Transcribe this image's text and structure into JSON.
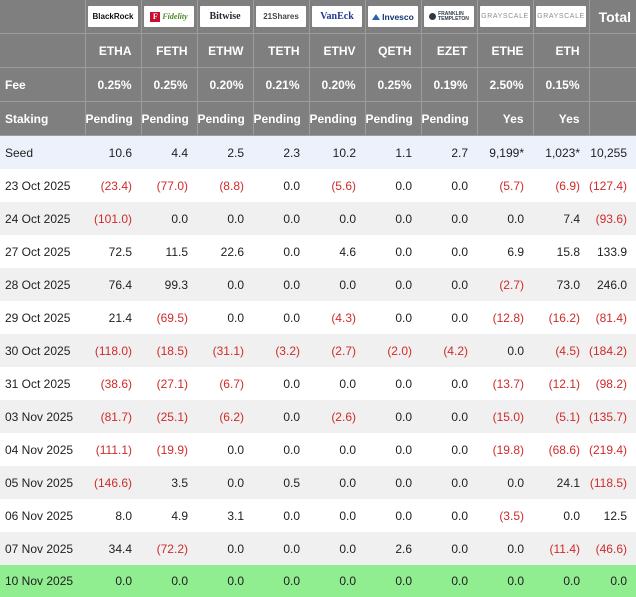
{
  "table": {
    "total_label": "Total",
    "row_labels": {
      "fee": "Fee",
      "staking": "Staking"
    },
    "providers": [
      {
        "id": "blackrock",
        "name": "BlackRock",
        "ticker": "ETHA",
        "fee": "0.25%",
        "staking": "Pending"
      },
      {
        "id": "fidelity",
        "name": "Fidelity",
        "ticker": "FETH",
        "fee": "0.25%",
        "staking": "Pending",
        "logo_letter": "F"
      },
      {
        "id": "bitwise",
        "name": "Bitwise",
        "ticker": "ETHW",
        "fee": "0.20%",
        "staking": "Pending"
      },
      {
        "id": "21shares",
        "name": "21Shares",
        "ticker": "TETH",
        "fee": "0.21%",
        "staking": "Pending"
      },
      {
        "id": "vaneck",
        "name": "VanEck",
        "ticker": "ETHV",
        "fee": "0.20%",
        "staking": "Pending"
      },
      {
        "id": "invesco",
        "name": "Invesco",
        "ticker": "QETH",
        "fee": "0.25%",
        "staking": "Pending"
      },
      {
        "id": "franklin",
        "name": "Franklin Templeton",
        "ticker": "EZET",
        "fee": "0.19%",
        "staking": "Pending",
        "logo_line1": "FRANKLIN",
        "logo_line2": "TEMPLETON"
      },
      {
        "id": "grayscale",
        "name": "Grayscale",
        "ticker": "ETHE",
        "fee": "2.50%",
        "staking": "Yes"
      },
      {
        "id": "grayscale",
        "name": "Grayscale",
        "ticker": "ETH",
        "fee": "0.15%",
        "staking": "Yes"
      }
    ],
    "rows": [
      {
        "label": "Seed",
        "values": [
          "10.6",
          "4.4",
          "2.5",
          "2.3",
          "10.2",
          "1.1",
          "2.7",
          "9,199*",
          "1,023*"
        ],
        "total": "10,255",
        "style": "seed"
      },
      {
        "label": "23 Oct 2025",
        "values": [
          "(23.4)",
          "(77.0)",
          "(8.8)",
          "0.0",
          "(5.6)",
          "0.0",
          "0.0",
          "(5.7)",
          "(6.9)"
        ],
        "total": "(127.4)",
        "style": "white"
      },
      {
        "label": "24 Oct 2025",
        "values": [
          "(101.0)",
          "0.0",
          "0.0",
          "0.0",
          "0.0",
          "0.0",
          "0.0",
          "0.0",
          "7.4"
        ],
        "total": "(93.6)",
        "style": "gray"
      },
      {
        "label": "27 Oct 2025",
        "values": [
          "72.5",
          "11.5",
          "22.6",
          "0.0",
          "4.6",
          "0.0",
          "0.0",
          "6.9",
          "15.8"
        ],
        "total": "133.9",
        "style": "white"
      },
      {
        "label": "28 Oct 2025",
        "values": [
          "76.4",
          "99.3",
          "0.0",
          "0.0",
          "0.0",
          "0.0",
          "0.0",
          "(2.7)",
          "73.0"
        ],
        "total": "246.0",
        "style": "gray"
      },
      {
        "label": "29 Oct 2025",
        "values": [
          "21.4",
          "(69.5)",
          "0.0",
          "0.0",
          "(4.3)",
          "0.0",
          "0.0",
          "(12.8)",
          "(16.2)"
        ],
        "total": "(81.4)",
        "style": "white"
      },
      {
        "label": "30 Oct 2025",
        "values": [
          "(118.0)",
          "(18.5)",
          "(31.1)",
          "(3.2)",
          "(2.7)",
          "(2.0)",
          "(4.2)",
          "0.0",
          "(4.5)"
        ],
        "total": "(184.2)",
        "style": "gray"
      },
      {
        "label": "31 Oct 2025",
        "values": [
          "(38.6)",
          "(27.1)",
          "(6.7)",
          "0.0",
          "0.0",
          "0.0",
          "0.0",
          "(13.7)",
          "(12.1)"
        ],
        "total": "(98.2)",
        "style": "white"
      },
      {
        "label": "03 Nov 2025",
        "values": [
          "(81.7)",
          "(25.1)",
          "(6.2)",
          "0.0",
          "(2.6)",
          "0.0",
          "0.0",
          "(15.0)",
          "(5.1)"
        ],
        "total": "(135.7)",
        "style": "gray"
      },
      {
        "label": "04 Nov 2025",
        "values": [
          "(111.1)",
          "(19.9)",
          "0.0",
          "0.0",
          "0.0",
          "0.0",
          "0.0",
          "(19.8)",
          "(68.6)"
        ],
        "total": "(219.4)",
        "style": "white"
      },
      {
        "label": "05 Nov 2025",
        "values": [
          "(146.6)",
          "3.5",
          "0.0",
          "0.5",
          "0.0",
          "0.0",
          "0.0",
          "0.0",
          "24.1"
        ],
        "total": "(118.5)",
        "style": "gray"
      },
      {
        "label": "06 Nov 2025",
        "values": [
          "8.0",
          "4.9",
          "3.1",
          "0.0",
          "0.0",
          "0.0",
          "0.0",
          "(3.5)",
          "0.0"
        ],
        "total": "12.5",
        "style": "white"
      },
      {
        "label": "07 Nov 2025",
        "values": [
          "34.4",
          "(72.2)",
          "0.0",
          "0.0",
          "0.0",
          "2.6",
          "0.0",
          "0.0",
          "(11.4)"
        ],
        "total": "(46.6)",
        "style": "gray"
      },
      {
        "label": "10 Nov 2025",
        "values": [
          "0.0",
          "0.0",
          "0.0",
          "0.0",
          "0.0",
          "0.0",
          "0.0",
          "0.0",
          "0.0"
        ],
        "total": "0.0",
        "style": "green"
      }
    ],
    "colors": {
      "header_bg": "#7f7f7f",
      "header_divider": "#9c9c9c",
      "negative": "#cf2b2b",
      "seed_row_bg": "#edf1fb",
      "alt_row_bg": "#f0f0f0",
      "green_row_bg": "#90ee90",
      "text": "#212121"
    }
  }
}
